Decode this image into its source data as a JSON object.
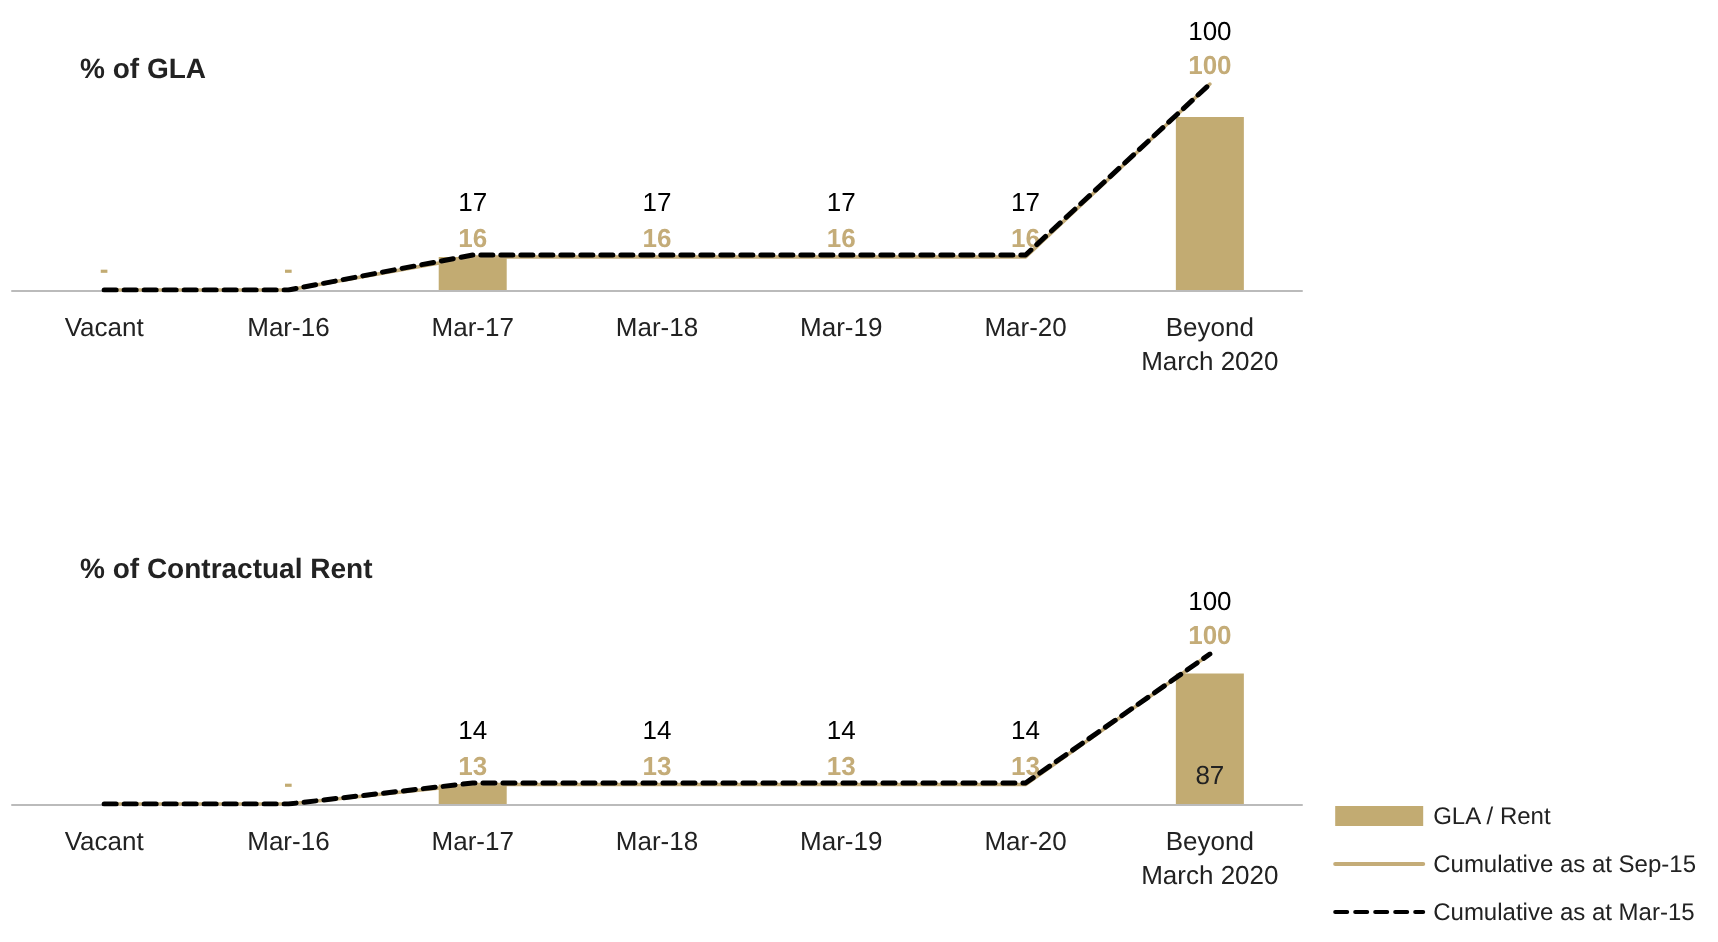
{
  "chart_data": [
    {
      "type": "bar",
      "title": "% of GLA",
      "categories": [
        "Vacant",
        "Mar-16",
        "Mar-17",
        "Mar-18",
        "Mar-19",
        "Mar-20",
        "Beyond\nMarch 2020"
      ],
      "legend": false,
      "series": [
        {
          "color": "#c2ab72",
          "values": [
            0,
            0,
            16,
            0,
            0,
            0,
            84
          ],
          "value_labels": [
            "-",
            "-",
            null,
            null,
            null,
            null,
            null
          ]
        },
        {
          "type": "line",
          "color": "#c4ac78",
          "line_style": "solid",
          "values": [
            0,
            0,
            16,
            16,
            16,
            16,
            100
          ],
          "value_labels": [
            null,
            null,
            "16",
            "16",
            "16",
            "16",
            "100"
          ]
        },
        {
          "type": "line",
          "color": "#000000",
          "line_style": "dashed",
          "values": [
            0,
            0,
            17,
            17,
            17,
            17,
            100
          ],
          "value_labels": [
            null,
            null,
            "17",
            "17",
            "17",
            "17",
            "100"
          ]
        }
      ]
    },
    {
      "type": "bar",
      "title": "% of Contractual Rent",
      "categories": [
        "Vacant",
        "Mar-16",
        "Mar-17",
        "Mar-18",
        "Mar-19",
        "Mar-20",
        "Beyond\nMarch 2020"
      ],
      "legend": "bottom right",
      "series": [
        {
          "name": "GLA / Rent",
          "color": "#c2ab72",
          "values": [
            0,
            0,
            13,
            0,
            0,
            0,
            87
          ],
          "value_labels": [
            null,
            "-",
            null,
            null,
            null,
            null,
            "87"
          ]
        },
        {
          "type": "line",
          "name": "Cumulative as at Sep-15",
          "color": "#c4ac78",
          "line_style": "solid",
          "values": [
            0,
            0,
            13,
            13,
            13,
            13,
            100
          ],
          "value_labels": [
            null,
            null,
            "13",
            "13",
            "13",
            "13",
            "100"
          ]
        },
        {
          "type": "line",
          "name": "Cumulative as at Mar-15",
          "color": "#000000",
          "line_style": "dashed",
          "values": [
            0,
            0,
            14,
            14,
            14,
            14,
            100
          ],
          "value_labels": [
            null,
            null,
            "14",
            "14",
            "14",
            "14",
            "100"
          ]
        }
      ]
    }
  ]
}
